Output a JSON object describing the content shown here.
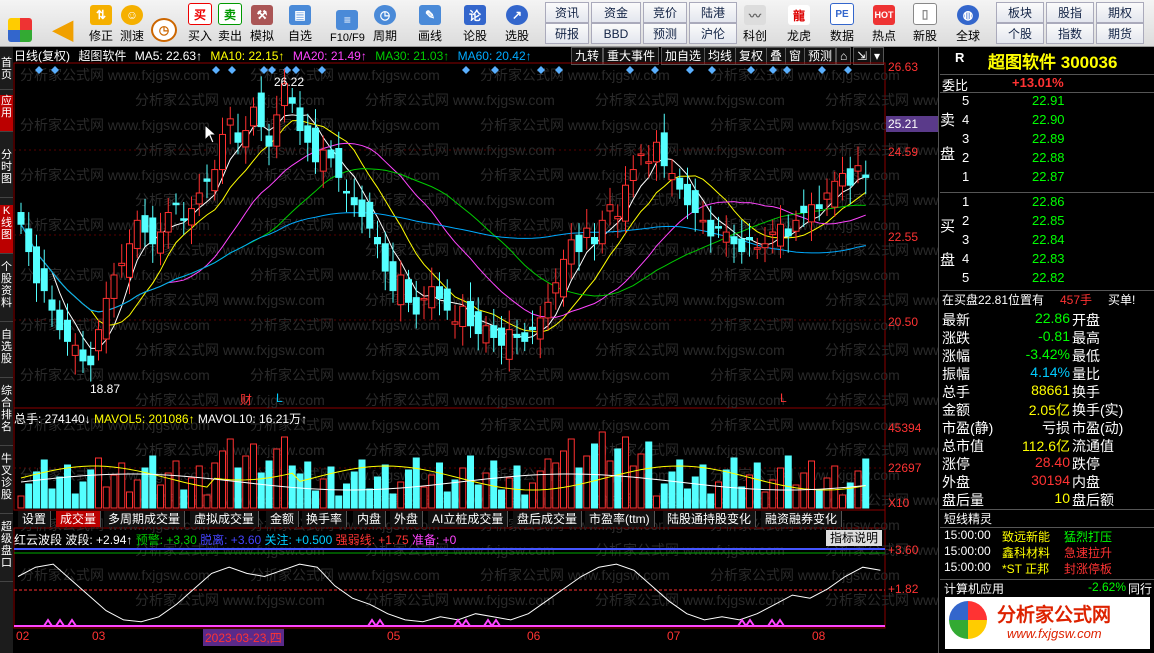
{
  "toolbar": {
    "buttons": [
      "",
      "",
      "修正",
      "测速",
      "买入",
      "卖出",
      "模拟",
      "自选",
      "F10/F9",
      "周期",
      "画线",
      "论股",
      "选股"
    ],
    "grid_top": [
      "资讯",
      "资金",
      "竞价",
      "陆港"
    ],
    "grid_bottom": [
      "研报",
      "BBD",
      "预测",
      "沪伦"
    ],
    "right_btns": [
      "科创",
      "龙虎",
      "数据",
      "热点",
      "新股"
    ],
    "far": {
      "top": [
        "全球",
        "板块",
        "股指",
        "期权"
      ],
      "bottom": [
        "全球",
        "个股",
        "指数",
        "期货"
      ]
    }
  },
  "sidebar": [
    "首页",
    "应用",
    "分时图",
    "K线图",
    "个股资料",
    "自选股",
    "综合排名",
    "牛叉诊股",
    "超级盘口"
  ],
  "chart_header": {
    "period": "日线(复权)",
    "name": "超图软件",
    "ma5": "MA5: 22.63↑",
    "ma10": "MA10: 22.15↑",
    "ma20": "MA20: 21.49↑",
    "ma30": "MA30: 21.03↑",
    "ma60": "MA60: 20.42↑"
  },
  "top_tabs": [
    "九转",
    "重大事件",
    "加自选",
    "均线",
    "复权",
    "叠",
    "窗",
    "预测"
  ],
  "price_axis": [
    "26.63",
    "25.21",
    "24.59",
    "22.55",
    "20.50"
  ],
  "annotations": {
    "high": "26.22",
    "low": "18.87",
    "cai": "财",
    "l1": "L",
    "l2": "L"
  },
  "vol_header": {
    "total": "总手: 274140↓",
    "ma5": "MAVOL5: 201086↑",
    "ma10": "MAVOL10: 16.21万↑"
  },
  "vol_axis": [
    "45394",
    "22697",
    "X10"
  ],
  "bottom_tabs": [
    "设置",
    "成交量",
    "多周期成交量",
    "虚拟成交量",
    "金额",
    "换手率",
    "内盘",
    "外盘",
    "AI立桩成交量",
    "盘后成交量",
    "市盈率(ttm)",
    "陆股通持股变化",
    "融资融券变化"
  ],
  "ind_header": {
    "name": "红云波段",
    "band": "波段: +2.94↑",
    "warn": "预警: +3.30",
    "leave": "脱离: +3.60",
    "focus": "关注: +0.500",
    "strong": "强弱线: +1.75",
    "prep": "准备: +0"
  },
  "ind_btn": "指标说明",
  "ind_axis": [
    "+3.60",
    "+1.82"
  ],
  "dates": [
    "02",
    "03",
    "2023-03-23,四",
    "05",
    "06",
    "07",
    "08"
  ],
  "watermark": "分析家公式网 www.fxjgsw.com",
  "right": {
    "badge": "R",
    "stock_name": "超图软件",
    "code": "300036",
    "weibi_label": "委比",
    "weibi": "+13.01%",
    "sell_label": "卖盘",
    "buy_label": "买盘",
    "sells": [
      {
        "lv": "5",
        "p": "22.91"
      },
      {
        "lv": "4",
        "p": "22.90"
      },
      {
        "lv": "3",
        "p": "22.89"
      },
      {
        "lv": "2",
        "p": "22.88"
      },
      {
        "lv": "1",
        "p": "22.87"
      }
    ],
    "buys": [
      {
        "lv": "1",
        "p": "22.86"
      },
      {
        "lv": "2",
        "p": "22.85"
      },
      {
        "lv": "3",
        "p": "22.84"
      },
      {
        "lv": "4",
        "p": "22.83"
      },
      {
        "lv": "5",
        "p": "22.82"
      }
    ],
    "note": "在买盘22.81位置有",
    "note_vol": "457手",
    "note_act": "买单!",
    "stats": [
      {
        "k": "最新",
        "v": "22.86",
        "k2": "开盘"
      },
      {
        "k": "涨跌",
        "v": "-0.81",
        "k2": "最高"
      },
      {
        "k": "涨幅",
        "v": "-3.42%",
        "k2": "最低"
      },
      {
        "k": "振幅",
        "v": "4.14%",
        "k2": "量比"
      },
      {
        "k": "总手",
        "v": "88661",
        "k2": "换手"
      },
      {
        "k": "金额",
        "v": "2.05亿",
        "k2": "换手(实)"
      },
      {
        "k": "市盈(静)",
        "v": "亏损",
        "k2": "市盈(动)"
      },
      {
        "k": "总市值",
        "v": "112.6亿",
        "k2": "流通值"
      },
      {
        "k": "涨停",
        "v": "28.40",
        "k2": "跌停"
      },
      {
        "k": "外盘",
        "v": "30194",
        "k2": "内盘"
      },
      {
        "k": "盘后量",
        "v": "10",
        "k2": "盘后额"
      }
    ],
    "elf_title": "短线精灵",
    "elf": [
      {
        "t": "15:00:00",
        "n": "致远新能",
        "e": "猛烈打压"
      },
      {
        "t": "15:00:00",
        "n": "鑫科材料",
        "e": "急速拉升"
      },
      {
        "t": "15:00:00",
        "n": "*ST 正邦",
        "e": "封涨停板"
      }
    ],
    "last_name": "计算机应用",
    "last_val": "-2.62%",
    "last_tab": "同行",
    "logo_text": "分析家公式网",
    "logo_url": "www.fxjgsw.com"
  },
  "colors": {
    "up": "#ff3030",
    "down": "#54ffff",
    "ma5": "#ffffff",
    "ma10": "#ffff00",
    "ma20": "#ff44ff",
    "ma30": "#00cc00",
    "ma60": "#00aaff"
  }
}
